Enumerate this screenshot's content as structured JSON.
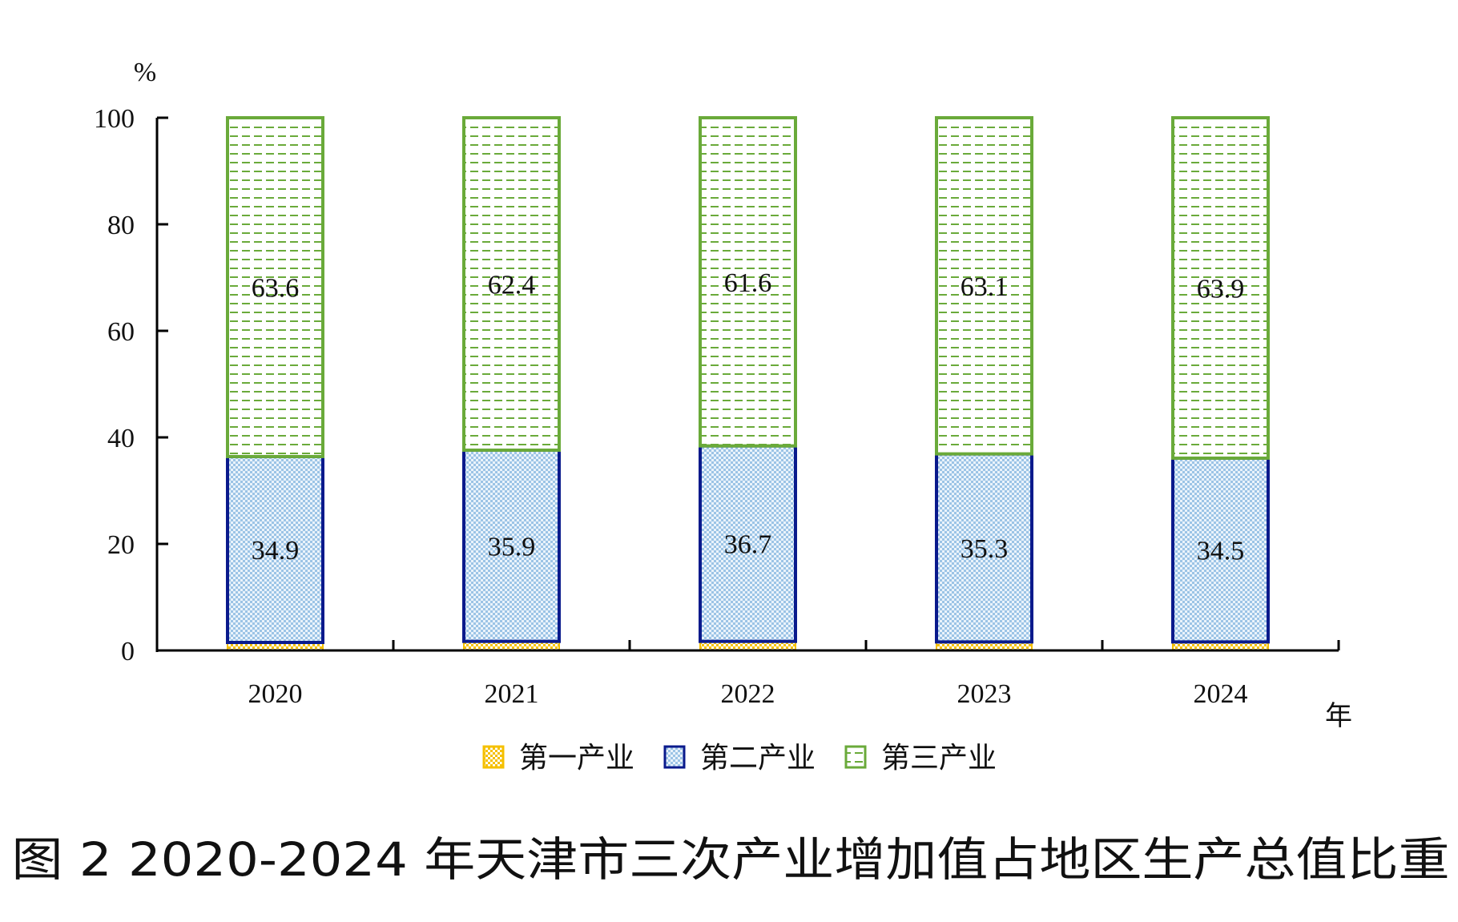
{
  "chart_data": {
    "type": "bar",
    "stacked": true,
    "title": "图 2 2020-2024 年天津市三次产业增加值占地区生产总值比重",
    "ylabel": "%",
    "xlabel": "年",
    "ylim": [
      0,
      100
    ],
    "yticks": [
      "0",
      "20",
      "40",
      "60",
      "80",
      "100"
    ],
    "categories": [
      "2020",
      "2021",
      "2022",
      "2023",
      "2024"
    ],
    "series": [
      {
        "name": "第一产业",
        "values": [
          1.5,
          1.7,
          1.7,
          1.6,
          1.6
        ],
        "labels": [
          "",
          "",
          "",
          "",
          ""
        ],
        "color": "#f5c000"
      },
      {
        "name": "第二产业",
        "values": [
          34.9,
          35.9,
          36.7,
          35.3,
          34.5
        ],
        "labels": [
          "34.9",
          "35.9",
          "36.7",
          "35.3",
          "34.5"
        ],
        "color": "#0a1a8c"
      },
      {
        "name": "第三产业",
        "values": [
          63.6,
          62.4,
          61.6,
          63.1,
          63.9
        ],
        "labels": [
          "63.6",
          "62.4",
          "61.6",
          "63.1",
          "63.9"
        ],
        "color": "#6aaa3a"
      }
    ],
    "legend_position": "bottom",
    "grid": false
  }
}
